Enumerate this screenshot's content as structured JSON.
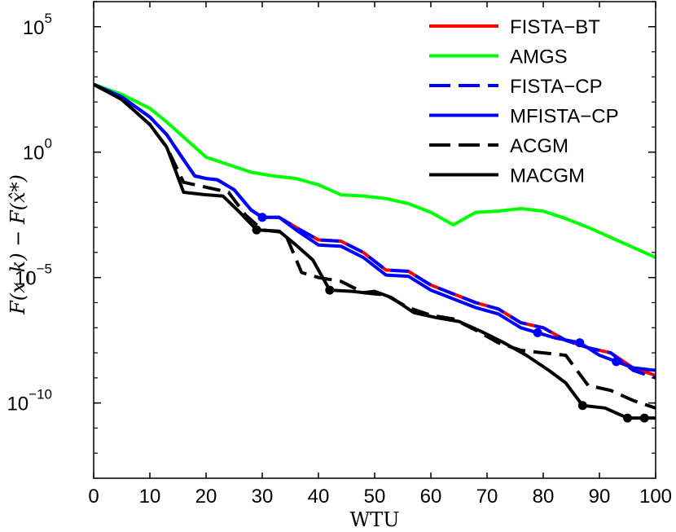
{
  "chart_data": {
    "type": "line",
    "xlabel": "WTU",
    "ylabel": "F(x_k) − F(x̂*)",
    "y_scale": "log",
    "xlim": [
      0,
      100
    ],
    "ylim_log10": [
      -13,
      6
    ],
    "x_ticks": [
      "0",
      "10",
      "20",
      "30",
      "40",
      "50",
      "60",
      "70",
      "80",
      "90",
      "100"
    ],
    "y_ticks": [
      {
        "base": "10",
        "exp": "5",
        "log10": 5
      },
      {
        "base": "10",
        "exp": "0",
        "log10": 0
      },
      {
        "base": "10",
        "exp": "−5",
        "log10": -5
      },
      {
        "base": "10",
        "exp": "−10",
        "log10": -10
      }
    ],
    "legend_position": "top-right",
    "grid": false,
    "series": [
      {
        "name": "FISTA−BT",
        "color": "#ff0000",
        "dash": "solid",
        "points": [
          [
            0,
            2.7
          ],
          [
            5,
            2.2
          ],
          [
            10,
            1.4
          ],
          [
            13,
            0.7
          ],
          [
            16,
            -0.3
          ],
          [
            18,
            -0.95
          ],
          [
            20,
            -1.05
          ],
          [
            22,
            -1.1
          ],
          [
            25,
            -1.5
          ],
          [
            28,
            -2.3
          ],
          [
            30,
            -2.6
          ],
          [
            33,
            -2.6
          ],
          [
            36,
            -3.0
          ],
          [
            40,
            -3.5
          ],
          [
            44,
            -3.55
          ],
          [
            48,
            -4.0
          ],
          [
            52,
            -4.7
          ],
          [
            56,
            -4.75
          ],
          [
            60,
            -5.3
          ],
          [
            64,
            -5.65
          ],
          [
            68,
            -6.0
          ],
          [
            72,
            -6.25
          ],
          [
            76,
            -6.8
          ],
          [
            80,
            -7.0
          ],
          [
            84,
            -7.5
          ],
          [
            88,
            -7.8
          ],
          [
            92,
            -8.0
          ],
          [
            96,
            -8.6
          ],
          [
            100,
            -8.9
          ]
        ]
      },
      {
        "name": "AMGS",
        "color": "#00ff00",
        "dash": "solid",
        "points": [
          [
            0,
            2.7
          ],
          [
            5,
            2.3
          ],
          [
            10,
            1.75
          ],
          [
            13,
            1.2
          ],
          [
            16,
            0.6
          ],
          [
            20,
            -0.2
          ],
          [
            24,
            -0.5
          ],
          [
            28,
            -0.8
          ],
          [
            32,
            -0.95
          ],
          [
            36,
            -1.05
          ],
          [
            40,
            -1.3
          ],
          [
            44,
            -1.7
          ],
          [
            48,
            -1.75
          ],
          [
            52,
            -1.85
          ],
          [
            56,
            -2.05
          ],
          [
            60,
            -2.4
          ],
          [
            64,
            -2.9
          ],
          [
            68,
            -2.4
          ],
          [
            72,
            -2.35
          ],
          [
            76,
            -2.25
          ],
          [
            80,
            -2.35
          ],
          [
            84,
            -2.65
          ],
          [
            88,
            -3.0
          ],
          [
            92,
            -3.4
          ],
          [
            96,
            -3.8
          ],
          [
            100,
            -4.2
          ]
        ]
      },
      {
        "name": "FISTA−CP",
        "color": "#0000ff",
        "dash": "dashed",
        "points": [
          [
            0,
            2.7
          ],
          [
            5,
            2.2
          ],
          [
            10,
            1.4
          ],
          [
            13,
            0.7
          ],
          [
            16,
            -0.3
          ],
          [
            18,
            -0.95
          ],
          [
            20,
            -1.05
          ],
          [
            22,
            -1.1
          ],
          [
            25,
            -1.5
          ],
          [
            28,
            -2.3
          ],
          [
            30,
            -2.6
          ],
          [
            33,
            -2.6
          ],
          [
            36,
            -3.0
          ],
          [
            40,
            -3.5
          ],
          [
            44,
            -3.55
          ],
          [
            48,
            -4.0
          ],
          [
            52,
            -4.7
          ],
          [
            56,
            -4.75
          ],
          [
            60,
            -5.3
          ],
          [
            64,
            -5.65
          ],
          [
            68,
            -6.0
          ],
          [
            72,
            -6.25
          ],
          [
            76,
            -6.8
          ],
          [
            80,
            -7.0
          ],
          [
            84,
            -7.5
          ],
          [
            88,
            -7.8
          ],
          [
            92,
            -8.0
          ],
          [
            96,
            -8.7
          ],
          [
            100,
            -9.0
          ]
        ]
      },
      {
        "name": "MFISTA−CP",
        "color": "#0000ff",
        "dash": "solid",
        "markers": [
          30,
          79,
          86.5,
          93
        ],
        "points": [
          [
            0,
            2.7
          ],
          [
            5,
            2.2
          ],
          [
            10,
            1.4
          ],
          [
            13,
            0.7
          ],
          [
            16,
            -0.3
          ],
          [
            18,
            -0.95
          ],
          [
            20,
            -1.05
          ],
          [
            22,
            -1.1
          ],
          [
            25,
            -1.5
          ],
          [
            28,
            -2.3
          ],
          [
            30,
            -2.6
          ],
          [
            33,
            -2.6
          ],
          [
            36,
            -3.1
          ],
          [
            40,
            -3.7
          ],
          [
            44,
            -3.75
          ],
          [
            48,
            -4.2
          ],
          [
            52,
            -4.9
          ],
          [
            56,
            -4.95
          ],
          [
            60,
            -5.5
          ],
          [
            64,
            -5.85
          ],
          [
            68,
            -6.2
          ],
          [
            72,
            -6.45
          ],
          [
            76,
            -7.0
          ],
          [
            79,
            -7.2
          ],
          [
            82,
            -7.4
          ],
          [
            86.5,
            -7.6
          ],
          [
            90,
            -8.1
          ],
          [
            93,
            -8.35
          ],
          [
            96,
            -8.6
          ],
          [
            100,
            -8.7
          ]
        ]
      },
      {
        "name": "ACGM",
        "color": "#000000",
        "dash": "dashed",
        "points": [
          [
            0,
            2.7
          ],
          [
            5,
            2.1
          ],
          [
            10,
            1.1
          ],
          [
            13,
            0.2
          ],
          [
            16,
            -1.2
          ],
          [
            20,
            -1.4
          ],
          [
            24,
            -1.6
          ],
          [
            27,
            -2.5
          ],
          [
            30,
            -3.1
          ],
          [
            34,
            -3.2
          ],
          [
            37,
            -4.8
          ],
          [
            40,
            -5.0
          ],
          [
            44,
            -5.15
          ],
          [
            48,
            -5.6
          ],
          [
            52,
            -5.7
          ],
          [
            56,
            -6.2
          ],
          [
            60,
            -6.5
          ],
          [
            64,
            -6.65
          ],
          [
            68,
            -7.1
          ],
          [
            72,
            -7.6
          ],
          [
            76,
            -7.9
          ],
          [
            80,
            -8.0
          ],
          [
            84,
            -8.1
          ],
          [
            88,
            -9.3
          ],
          [
            92,
            -9.5
          ],
          [
            96,
            -9.9
          ],
          [
            100,
            -10.2
          ]
        ]
      },
      {
        "name": "MACGM",
        "color": "#000000",
        "dash": "solid",
        "markers": [
          29,
          42,
          87,
          95,
          98
        ],
        "points": [
          [
            0,
            2.7
          ],
          [
            5,
            2.1
          ],
          [
            10,
            1.1
          ],
          [
            13,
            0.2
          ],
          [
            16,
            -1.6
          ],
          [
            20,
            -1.7
          ],
          [
            23,
            -1.75
          ],
          [
            26,
            -2.4
          ],
          [
            29,
            -3.1
          ],
          [
            33,
            -3.15
          ],
          [
            36,
            -3.7
          ],
          [
            39,
            -4.3
          ],
          [
            42,
            -5.5
          ],
          [
            46,
            -5.55
          ],
          [
            48,
            -5.6
          ],
          [
            50,
            -5.55
          ],
          [
            53,
            -5.8
          ],
          [
            57,
            -6.4
          ],
          [
            61,
            -6.6
          ],
          [
            65,
            -6.75
          ],
          [
            69,
            -7.15
          ],
          [
            73,
            -7.6
          ],
          [
            77,
            -8.1
          ],
          [
            81,
            -8.7
          ],
          [
            84,
            -9.2
          ],
          [
            87,
            -10.1
          ],
          [
            91,
            -10.2
          ],
          [
            95,
            -10.6
          ],
          [
            98,
            -10.6
          ],
          [
            100,
            -10.6
          ]
        ]
      }
    ]
  }
}
